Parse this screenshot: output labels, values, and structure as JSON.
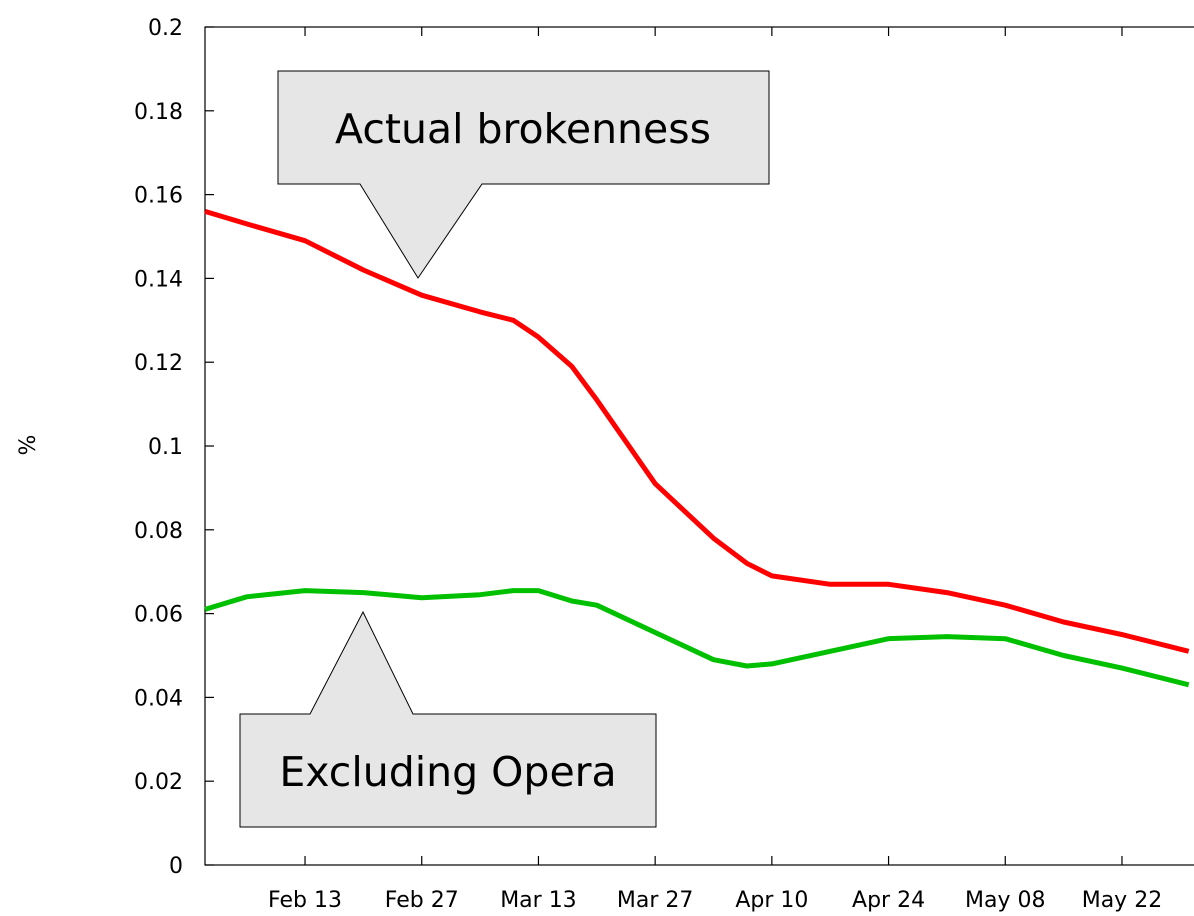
{
  "chart_data": {
    "type": "line",
    "y_label": "%",
    "annotations": [
      "Actual brokenness",
      "Excluding Opera"
    ],
    "x": [
      "Feb 01",
      "Feb 06",
      "Feb 13",
      "Feb 20",
      "Feb 27",
      "Mar 06",
      "Mar 10",
      "Mar 13",
      "Mar 17",
      "Mar 20",
      "Mar 27",
      "Apr 03",
      "Apr 07",
      "Apr 10",
      "Apr 17",
      "Apr 24",
      "May 01",
      "May 08",
      "May 15",
      "May 22",
      "May 30"
    ],
    "series": [
      {
        "name": "Actual brokenness",
        "color": "#ff0000",
        "values": [
          0.156,
          0.153,
          0.149,
          0.142,
          0.136,
          0.132,
          0.13,
          0.126,
          0.119,
          0.111,
          0.091,
          0.078,
          0.072,
          0.069,
          0.067,
          0.067,
          0.065,
          0.062,
          0.058,
          0.055,
          0.051
        ]
      },
      {
        "name": "Excluding Opera",
        "color": "#00c000",
        "values": [
          0.061,
          0.064,
          0.0655,
          0.065,
          0.0638,
          0.0645,
          0.0655,
          0.0655,
          0.063,
          0.062,
          0.0555,
          0.049,
          0.0475,
          0.048,
          0.051,
          0.054,
          0.0545,
          0.054,
          0.05,
          0.047,
          0.043
        ]
      }
    ],
    "xlim": [
      "Feb 01",
      "May 31"
    ],
    "xticks": [
      "Feb 13",
      "Feb 27",
      "Mar 13",
      "Mar 27",
      "Apr 10",
      "Apr 24",
      "May 08",
      "May 22"
    ],
    "ylim": [
      0,
      0.2
    ],
    "yticks": [
      0,
      0.02,
      0.04,
      0.06,
      0.08,
      0.1,
      0.12,
      0.14,
      0.16,
      0.18,
      0.2
    ]
  }
}
